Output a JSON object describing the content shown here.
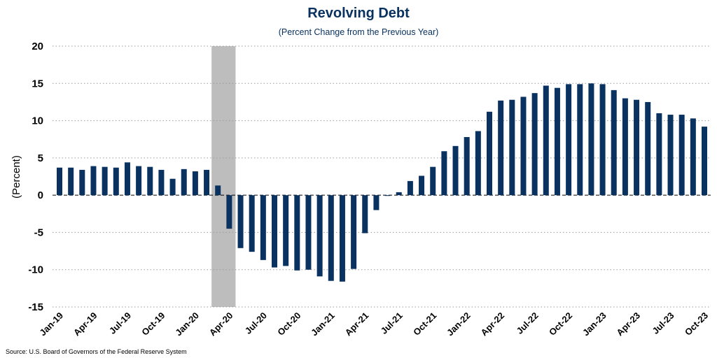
{
  "chart_data": {
    "type": "bar",
    "title": "Revolving Debt",
    "subtitle": "(Percent Change from the Previous Year)",
    "ylabel": "(Percent)",
    "xlabel": "",
    "ylim": [
      -15,
      20
    ],
    "yticks": [
      20,
      15,
      10,
      5,
      0,
      -5,
      -10,
      -15
    ],
    "grid": "horizontal dotted",
    "colors": {
      "bar": "#0a3260",
      "recession": "#bdbdbd",
      "title": "#0a3260"
    },
    "recession_shading": {
      "from": "Mar-20",
      "to": "Apr-20"
    },
    "categories": [
      "Jan-19",
      "Feb-19",
      "Mar-19",
      "Apr-19",
      "May-19",
      "Jun-19",
      "Jul-19",
      "Aug-19",
      "Sep-19",
      "Oct-19",
      "Nov-19",
      "Dec-19",
      "Jan-20",
      "Feb-20",
      "Mar-20",
      "Apr-20",
      "May-20",
      "Jun-20",
      "Jul-20",
      "Aug-20",
      "Sep-20",
      "Oct-20",
      "Nov-20",
      "Dec-20",
      "Jan-21",
      "Feb-21",
      "Mar-21",
      "Apr-21",
      "May-21",
      "Jun-21",
      "Jul-21",
      "Aug-21",
      "Sep-21",
      "Oct-21",
      "Nov-21",
      "Dec-21",
      "Jan-22",
      "Feb-22",
      "Mar-22",
      "Apr-22",
      "May-22",
      "Jun-22",
      "Jul-22",
      "Aug-22",
      "Sep-22",
      "Oct-22",
      "Nov-22",
      "Dec-22",
      "Jan-23",
      "Feb-23",
      "Mar-23",
      "Apr-23",
      "May-23",
      "Jun-23",
      "Jul-23",
      "Aug-23",
      "Sep-23",
      "Oct-23"
    ],
    "x_tick_labels": [
      "Jan-19",
      "Apr-19",
      "Jul-19",
      "Oct-19",
      "Jan-20",
      "Apr-20",
      "Jul-20",
      "Oct-20",
      "Jan-21",
      "Apr-21",
      "Jul-21",
      "Oct-21",
      "Jan-22",
      "Apr-22",
      "Jul-22",
      "Oct-22",
      "Jan-23",
      "Apr-23",
      "Jul-23",
      "Oct-23"
    ],
    "values": [
      3.7,
      3.7,
      3.4,
      3.9,
      3.8,
      3.7,
      4.4,
      3.9,
      3.8,
      3.4,
      2.2,
      3.5,
      3.2,
      3.4,
      1.3,
      -4.5,
      -7.1,
      -7.6,
      -8.7,
      -9.7,
      -9.5,
      -10.1,
      -10.0,
      -10.9,
      -11.5,
      -11.6,
      -9.9,
      -5.1,
      -2.0,
      -0.1,
      0.4,
      1.9,
      2.6,
      3.8,
      5.9,
      6.6,
      7.8,
      8.6,
      11.2,
      12.7,
      12.8,
      13.2,
      13.7,
      14.7,
      14.4,
      14.9,
      14.9,
      15.0,
      14.9,
      14.1,
      13.0,
      12.8,
      12.5,
      11.0,
      10.8,
      10.8,
      10.3,
      9.2
    ],
    "source": "Source: U.S. Board of Governors of the Federal Reserve System"
  }
}
